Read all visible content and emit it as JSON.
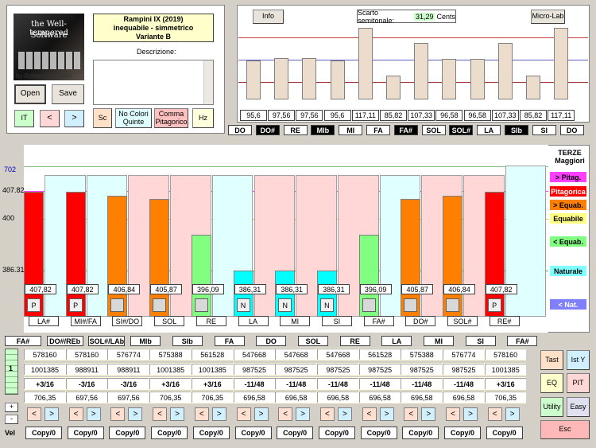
{
  "colors": {
    "bg": "#d4d0c8",
    "pink": "#ffd7d7",
    "lightcyan": "#e0ffff",
    "red": "#ff0000",
    "orange": "#ff8000",
    "green": "#80ff80",
    "cyan": "#00ffff",
    "tan": "#ecdccc",
    "magenta": "#ff00ff",
    "yellow": "#ffffcc"
  },
  "logo": {
    "line1": "the Well-tempered",
    "line2": "Software",
    "credit": "by Roberto Rempini"
  },
  "info": {
    "line1": "Rampini IX (2019)",
    "line2": "inequabile - simmetrico",
    "line3": "Variante B"
  },
  "descrizione_label": "Descrizione:",
  "buttons": {
    "open": "Open",
    "save": "Save",
    "it": "IT",
    "prev": "<",
    "next": ">",
    "sc": "Sc",
    "nocolori": "No Colori Quinte",
    "comma": "Comma Pitagorico",
    "hz": "Hz",
    "info": "Info",
    "microlab": "Micro-Lab",
    "tast": "Tast",
    "isty": "Ist Y",
    "eq": "EQ",
    "pit": "PIT",
    "utility": "Utility",
    "easy": "Easy",
    "esc": "Esc",
    "plus": "+",
    "minus": "-",
    "vel": "Vel"
  },
  "scarto": {
    "label": "Scarto semitonale:",
    "value": "31,29",
    "unit": "Cents"
  },
  "top_chart": {
    "values": [
      "95,6",
      "97,56",
      "97,56",
      "95,6",
      "117,11",
      "85,82",
      "107,33",
      "96,58",
      "96,58",
      "107,33",
      "85,82",
      "117,11"
    ],
    "heights": [
      95.6,
      97.56,
      97.56,
      95.6,
      117.11,
      85.82,
      107.33,
      96.58,
      96.58,
      107.33,
      85.82,
      117.11
    ]
  },
  "notes_top": [
    {
      "t": "DO",
      "d": false
    },
    {
      "t": "DO#",
      "d": true
    },
    {
      "t": "RE",
      "d": false
    },
    {
      "t": "MIb",
      "d": true
    },
    {
      "t": "MI",
      "d": false
    },
    {
      "t": "FA",
      "d": false
    },
    {
      "t": "FA#",
      "d": true
    },
    {
      "t": "SOL",
      "d": false
    },
    {
      "t": "SOL#",
      "d": true
    },
    {
      "t": "LA",
      "d": false
    },
    {
      "t": "SIb",
      "d": true
    },
    {
      "t": "SI",
      "d": false
    },
    {
      "t": "DO",
      "d": false
    }
  ],
  "thirds": {
    "axis": [
      "702",
      "407.82",
      "400",
      "386.31"
    ],
    "values": [
      407.82,
      407.82,
      406.84,
      405.87,
      396.09,
      386.31,
      386.31,
      386.31,
      396.09,
      405.87,
      406.84,
      407.82
    ],
    "labels": [
      "407,82",
      "407,82",
      "406,84",
      "405,87",
      "396,09",
      "386,31",
      "386,31",
      "386,31",
      "396,09",
      "405,87",
      "406,84",
      "407,82"
    ],
    "marks": [
      "P",
      "P",
      "",
      "",
      "",
      "N",
      "N",
      "N",
      "",
      "",
      "",
      "P"
    ],
    "names": [
      "LA#",
      "MI#/FA",
      "SI#/DO",
      "SOL",
      "RE",
      "LA",
      "MI",
      "SI",
      "FA#",
      "DO#",
      "SOL#",
      "RE#"
    ],
    "colors": [
      "#ff0000",
      "#ff0000",
      "#ff8000",
      "#ff8000",
      "#80ff80",
      "#00ffff",
      "#00ffff",
      "#00ffff",
      "#80ff80",
      "#ff8000",
      "#ff8000",
      "#ff0000"
    ]
  },
  "legend": {
    "title1": "TERZE",
    "title2": "Maggiori",
    "pitag_plus": "> Pitag.",
    "pitagorica": "Pitagorica",
    "equab_plus": "> Equab.",
    "equabile": "Equabile",
    "equab_minus": "< Equab.",
    "naturale": "Naturale",
    "nat_minus": "< Nat."
  },
  "notes_bottom": [
    "FA#",
    "DO#/REb",
    "SOL#/LAb",
    "MIb",
    "SIb",
    "FA",
    "DO",
    "SOL",
    "RE",
    "LA",
    "MI",
    "SI",
    "FA#"
  ],
  "row1": [
    "578160",
    "578160",
    "576774",
    "575388",
    "561528",
    "547668",
    "547668",
    "547668",
    "561528",
    "575388",
    "576774",
    "578160"
  ],
  "row2": [
    "1001385",
    "988911",
    "988911",
    "1001385",
    "1001385",
    "987525",
    "987525",
    "987525",
    "987525",
    "987525",
    "987525",
    "1001385"
  ],
  "row3": [
    "+3/16",
    "-3/16",
    "-3/16",
    "+3/16",
    "+3/16",
    "-11/48",
    "-11/48",
    "-11/48",
    "-11/48",
    "-11/48",
    "-11/48",
    "+3/16"
  ],
  "row4": [
    "706,35",
    "697,56",
    "697,56",
    "706,35",
    "706,35",
    "696,58",
    "696,58",
    "696,58",
    "696,58",
    "696,58",
    "696,58",
    "706,35"
  ],
  "copy": "Copy/0",
  "side": {
    "num": "1"
  }
}
